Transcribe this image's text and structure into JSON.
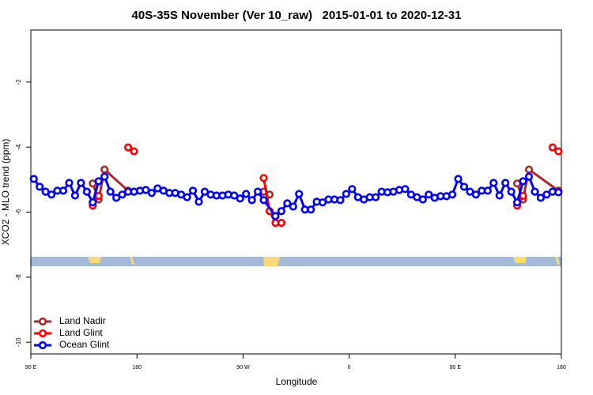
{
  "chart_data": {
    "type": "line",
    "title": "40S-35S November (Ver 10_raw)   2015-01-01 to 2020-12-31",
    "x_label": "Longitude",
    "y_label": "XCO2 - MLO trend (ppm)",
    "xlim": [
      90,
      540
    ],
    "ylim": [
      -10.36,
      -0.4
    ],
    "xticks": [
      {
        "value": 90,
        "label": "90 E"
      },
      180,
      {
        "value": 270,
        "label": "90 W"
      },
      {
        "value": 360,
        "label": "0"
      },
      {
        "value": 450,
        "label": "90 E"
      },
      {
        "value": 540,
        "label": "180"
      }
    ],
    "yticks": [
      -2,
      -4,
      -6,
      -8,
      -10
    ],
    "legend": "bottomleft",
    "series": [
      {
        "name": "Land Nadir",
        "color": "#a52a2a",
        "x": [
          142.5,
          147.5,
          152.5,
          172.5,
          230,
          287.5,
          292.5,
          400,
          502.5,
          507.5,
          512.5,
          537.5
        ],
        "values": [
          -5.12,
          -5.61,
          -4.69,
          -5.34,
          null,
          -5.37,
          -5.46,
          null,
          -5.12,
          -5.61,
          -4.69,
          -5.34
        ]
      },
      {
        "name": "Land Glint",
        "color": "#ff0000",
        "x": [
          142.5,
          147.5,
          160,
          172.5,
          177.5,
          230,
          287.5,
          292.5,
          297.5,
          302.5,
          400,
          502.5,
          507.5,
          520,
          532.5,
          537.5
        ],
        "values": [
          -5.8,
          -5.5,
          null,
          -4.01,
          -4.13,
          null,
          -4.95,
          -5.97,
          -6.33,
          -6.33,
          null,
          -5.8,
          -5.5,
          null,
          -4.01,
          -4.13
        ]
      },
      {
        "name": "Ocean Glint",
        "color": "#0000ff",
        "x": [
          92.5,
          97.5,
          102.5,
          107.5,
          112.5,
          117.5,
          122.5,
          127.5,
          132.5,
          137.5,
          142.5,
          147.5,
          152.5,
          157.5,
          162.5,
          167.5,
          172.5,
          177.5,
          182.5,
          187.5,
          192.5,
          197.5,
          202.5,
          207.5,
          212.5,
          217.5,
          222.5,
          227.5,
          232.5,
          237.5,
          242.5,
          247.5,
          252.5,
          257.5,
          262.5,
          267.5,
          272.5,
          277.5,
          282.5,
          287.5,
          297.5,
          302.5,
          307.5,
          312.5,
          317.5,
          322.5,
          327.5,
          332.5,
          337.5,
          342.5,
          347.5,
          352.5,
          357.5,
          362.5,
          367.5,
          372.5,
          377.5,
          382.5,
          387.5,
          392.5,
          397.5,
          402.5,
          407.5,
          412.5,
          417.5,
          422.5,
          427.5,
          432.5,
          437.5,
          442.5,
          447.5,
          452.5,
          457.5,
          462.5,
          467.5,
          472.5,
          477.5,
          482.5,
          487.5,
          492.5,
          497.5,
          502.5,
          507.5,
          512.5,
          517.5,
          522.5,
          527.5,
          532.5,
          537.5
        ],
        "values": [
          -4.98,
          -5.22,
          -5.37,
          -5.46,
          -5.34,
          -5.34,
          -5.1,
          -5.49,
          -5.1,
          -5.37,
          -5.7,
          -5.05,
          -4.91,
          -5.37,
          -5.56,
          -5.46,
          -5.37,
          -5.37,
          -5.34,
          -5.32,
          -5.41,
          -5.27,
          -5.34,
          -5.41,
          -5.41,
          -5.46,
          -5.54,
          -5.34,
          -5.68,
          -5.37,
          -5.46,
          -5.49,
          -5.49,
          -5.46,
          -5.49,
          -5.58,
          -5.44,
          -5.63,
          -5.37,
          -5.63,
          -6.12,
          -5.97,
          -5.73,
          -5.83,
          -5.44,
          -5.92,
          -5.92,
          -5.68,
          -5.7,
          -5.61,
          -5.61,
          -5.63,
          -5.44,
          -5.29,
          -5.54,
          -5.61,
          -5.54,
          -5.54,
          -5.37,
          -5.39,
          -5.37,
          -5.32,
          -5.29,
          -5.46,
          -5.54,
          -5.61,
          -5.46,
          -5.56,
          -5.51,
          -5.51,
          -5.46,
          -4.98,
          -5.22,
          -5.37,
          -5.46,
          -5.34,
          -5.34,
          -5.1,
          -5.49,
          -5.1,
          -5.37,
          -5.7,
          -5.05,
          -4.91,
          -5.37,
          -5.56,
          -5.46,
          -5.37,
          -5.39
        ]
      }
    ]
  }
}
